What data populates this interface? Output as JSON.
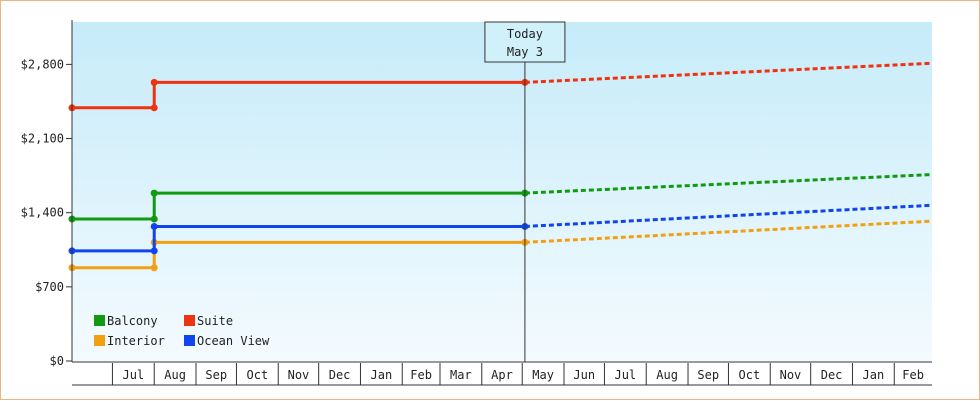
{
  "chart_data": {
    "type": "line",
    "step": true,
    "title": "",
    "xlabel": "",
    "ylabel": "",
    "ylim": [
      0,
      3200
    ],
    "y_ticks": [
      0,
      700,
      1400,
      2100,
      2800
    ],
    "y_tick_labels": [
      "$0",
      "$700",
      "$1,400",
      "$2,100",
      "$2,800"
    ],
    "x_domain": [
      "2016-06-01",
      "2018-03-01"
    ],
    "x_months": [
      {
        "label": "",
        "start": "2016-06-01",
        "end": "2016-07-01"
      },
      {
        "label": "Jul",
        "start": "2016-07-01",
        "end": "2016-08-01"
      },
      {
        "label": "Aug",
        "start": "2016-08-01",
        "end": "2016-09-01"
      },
      {
        "label": "Sep",
        "start": "2016-09-01",
        "end": "2016-10-01"
      },
      {
        "label": "Oct",
        "start": "2016-10-01",
        "end": "2016-11-01"
      },
      {
        "label": "Nov",
        "start": "2016-11-01",
        "end": "2016-12-01"
      },
      {
        "label": "Dec",
        "start": "2016-12-01",
        "end": "2017-01-01"
      },
      {
        "label": "Jan",
        "start": "2017-01-01",
        "end": "2017-02-01"
      },
      {
        "label": "Feb",
        "start": "2017-02-01",
        "end": "2017-03-01"
      },
      {
        "label": "Mar",
        "start": "2017-03-01",
        "end": "2017-04-01"
      },
      {
        "label": "Apr",
        "start": "2017-04-01",
        "end": "2017-05-01"
      },
      {
        "label": "May",
        "start": "2017-05-01",
        "end": "2017-06-01"
      },
      {
        "label": "Jun",
        "start": "2017-06-01",
        "end": "2017-07-01"
      },
      {
        "label": "Jul",
        "start": "2017-07-01",
        "end": "2017-08-01"
      },
      {
        "label": "Aug",
        "start": "2017-08-01",
        "end": "2017-09-01"
      },
      {
        "label": "Sep",
        "start": "2017-09-01",
        "end": "2017-10-01"
      },
      {
        "label": "Oct",
        "start": "2017-10-01",
        "end": "2017-11-01"
      },
      {
        "label": "Nov",
        "start": "2017-11-01",
        "end": "2017-12-01"
      },
      {
        "label": "Dec",
        "start": "2017-12-01",
        "end": "2018-01-01"
      },
      {
        "label": "Jan",
        "start": "2018-01-01",
        "end": "2018-02-01"
      },
      {
        "label": "Feb",
        "start": "2018-02-01",
        "end": "2018-03-01"
      }
    ],
    "today": {
      "line1": "Today",
      "line2": "May 3",
      "date": "2017-05-03"
    },
    "legend": {
      "position": "bottom-left"
    },
    "grid": false,
    "series": [
      {
        "name": "Balcony",
        "color": "#119911",
        "points": [
          [
            "2016-06-01",
            1340
          ],
          [
            "2016-08-01",
            1340
          ],
          [
            "2016-08-01",
            1585
          ],
          [
            "2017-05-03",
            1585
          ]
        ],
        "forecast": [
          [
            "2017-05-03",
            1585
          ],
          [
            "2018-03-01",
            1760
          ]
        ]
      },
      {
        "name": "Suite",
        "color": "#ee3311",
        "points": [
          [
            "2016-06-01",
            2390
          ],
          [
            "2016-08-01",
            2390
          ],
          [
            "2016-08-01",
            2630
          ],
          [
            "2017-05-03",
            2630
          ]
        ],
        "forecast": [
          [
            "2017-05-03",
            2630
          ],
          [
            "2018-03-01",
            2810
          ]
        ]
      },
      {
        "name": "Interior",
        "color": "#f0a010",
        "points": [
          [
            "2016-06-01",
            880
          ],
          [
            "2016-08-01",
            880
          ],
          [
            "2016-08-01",
            1120
          ],
          [
            "2017-05-03",
            1120
          ]
        ],
        "forecast": [
          [
            "2017-05-03",
            1120
          ],
          [
            "2018-03-01",
            1320
          ]
        ]
      },
      {
        "name": "Ocean View",
        "color": "#1144ee",
        "points": [
          [
            "2016-06-01",
            1040
          ],
          [
            "2016-08-01",
            1040
          ],
          [
            "2016-08-01",
            1270
          ],
          [
            "2017-05-03",
            1270
          ]
        ],
        "forecast": [
          [
            "2017-05-03",
            1270
          ],
          [
            "2018-03-01",
            1470
          ]
        ]
      }
    ]
  }
}
